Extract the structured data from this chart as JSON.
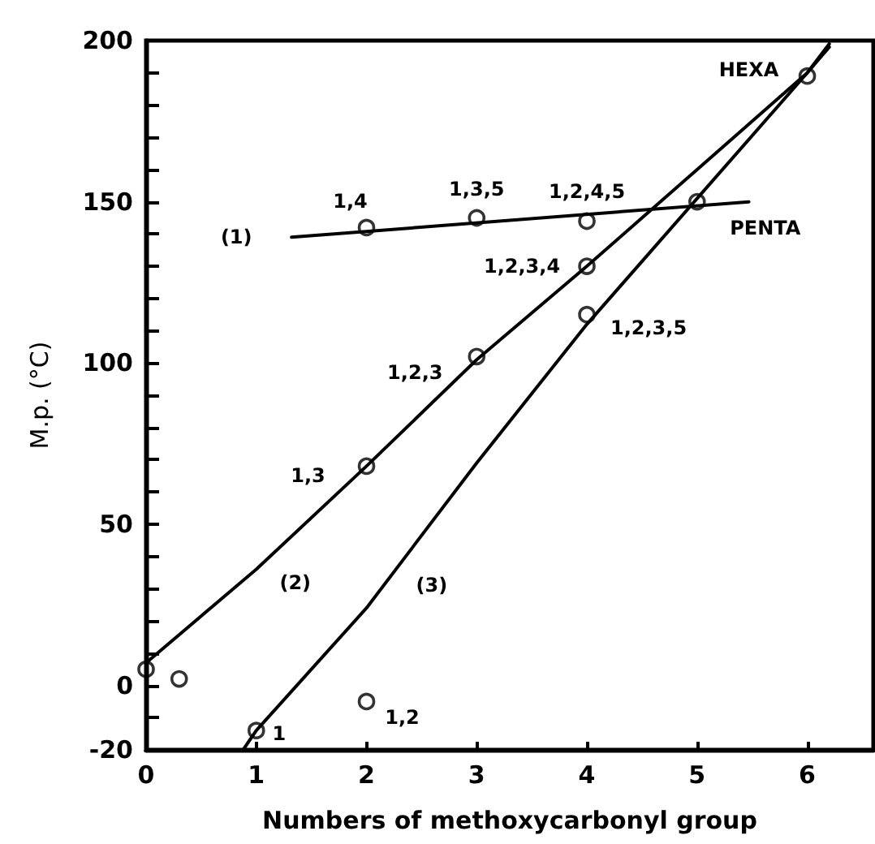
{
  "chart_data": {
    "type": "line",
    "xlabel": "Numbers of methoxycarbonyl group",
    "ylabel": "M.p. (°C)",
    "xlim": [
      0,
      6.6
    ],
    "xticks": [
      0,
      1,
      2,
      3,
      4,
      5,
      6
    ],
    "ylim": [
      -20,
      200
    ],
    "yticks": [
      -20,
      {
        "value": -10,
        "label": null
      },
      0,
      {
        "value": 10,
        "label": null
      },
      {
        "value": 20,
        "label": null
      },
      {
        "value": 30,
        "label": null
      },
      {
        "value": 40,
        "label": null
      },
      50,
      {
        "value": 60,
        "label": null
      },
      {
        "value": 70,
        "label": null
      },
      {
        "value": 80,
        "label": null
      },
      {
        "value": 90,
        "label": null
      },
      100,
      {
        "value": 110,
        "label": null
      },
      {
        "value": 120,
        "label": null
      },
      {
        "value": 130,
        "label": null
      },
      {
        "value": 140,
        "label": null
      },
      150,
      {
        "value": 160,
        "label": null
      },
      {
        "value": 170,
        "label": null
      },
      {
        "value": 180,
        "label": null
      },
      {
        "value": 190,
        "label": null
      },
      200
    ],
    "grid": false,
    "marker": "none",
    "line_style": "solid",
    "series": [
      {
        "color": "#000000",
        "x": [
          1.32,
          5.47
        ],
        "values": [
          139,
          150
        ]
      },
      {
        "color": "#000000",
        "x": [
          0,
          1,
          2,
          3,
          4,
          5,
          6,
          6.2
        ],
        "values": [
          7,
          36,
          68,
          101,
          130,
          160,
          190,
          198
        ]
      },
      {
        "color": "#000000",
        "x": [
          0.88,
          1,
          2,
          3,
          4,
          5,
          6,
          6.2
        ],
        "values": [
          -20,
          -14,
          24,
          69,
          112,
          151,
          190,
          199
        ]
      },
      {
        "type": "scatter",
        "color": "#000000",
        "marker": "circle",
        "x": [
          0,
          0.3,
          1,
          2,
          2,
          3,
          4,
          4,
          5,
          6,
          2,
          3,
          4
        ],
        "values": [
          5,
          2,
          -14,
          -5,
          68,
          102,
          130,
          115,
          150,
          189,
          142,
          145,
          144
        ]
      }
    ],
    "annotations": [
      {
        "text": "1,4",
        "x": 2,
        "y": 142
      },
      {
        "text": "1,3,5",
        "x": 3,
        "y": 145
      },
      {
        "text": "1,2,4,5",
        "x": 4,
        "y": 144
      },
      {
        "text": "1,2,3,4",
        "x": 4,
        "y": 130
      },
      {
        "text": "1,2,3,5",
        "x": 4,
        "y": 115
      },
      {
        "text": "1,2,3",
        "x": 3,
        "y": 102
      },
      {
        "text": "1,3",
        "x": 2,
        "y": 68
      },
      {
        "text": "1,2",
        "x": 2,
        "y": -5
      },
      {
        "text": "1",
        "x": 1,
        "y": -14
      },
      {
        "text": "HEXA",
        "x": 6,
        "y": 189
      },
      {
        "text": "PENTA",
        "x": 5,
        "y": 150
      },
      {
        "text": "(1)",
        "x": 1.32,
        "y": 139
      },
      {
        "text": "(2)",
        "x": 1,
        "y": 36
      },
      {
        "text": "(3)",
        "x": 2.15,
        "y": 31
      }
    ]
  }
}
